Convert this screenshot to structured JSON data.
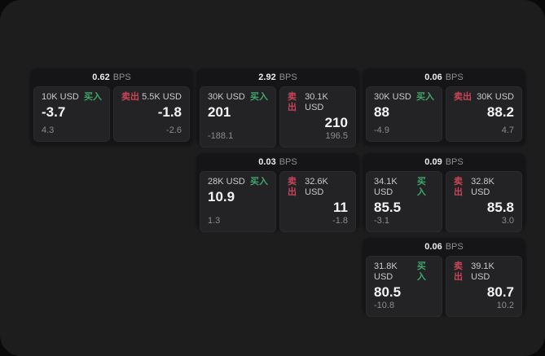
{
  "theme": {
    "canvas": "#1d1d1e",
    "card": "#151517",
    "panel": "#232326",
    "green": "#3fa66a",
    "red": "#c94458"
  },
  "cards": [
    {
      "bps_value": "0.62",
      "bps_unit": "BPS",
      "buy": {
        "amount": "10K USD",
        "tag": "买入",
        "price": "-3.7",
        "delta": "4.3"
      },
      "sell": {
        "tag": "卖出",
        "amount": "5.5K USD",
        "price": "-1.8",
        "delta": "-2.6"
      }
    },
    {
      "bps_value": "2.92",
      "bps_unit": "BPS",
      "buy": {
        "amount": "30K USD",
        "tag": "买入",
        "price": "201",
        "delta": "-188.1"
      },
      "sell": {
        "tag": "卖出",
        "amount": "30.1K USD",
        "price": "210",
        "delta": "196.5"
      }
    },
    {
      "bps_value": "0.06",
      "bps_unit": "BPS",
      "buy": {
        "amount": "30K USD",
        "tag": "买入",
        "price": "88",
        "delta": "-4.9"
      },
      "sell": {
        "tag": "卖出",
        "amount": "30K USD",
        "price": "88.2",
        "delta": "4.7"
      }
    },
    {
      "bps_value": "0.03",
      "bps_unit": "BPS",
      "buy": {
        "amount": "28K USD",
        "tag": "买入",
        "price": "10.9",
        "delta": "1.3"
      },
      "sell": {
        "tag": "卖出",
        "amount": "32.6K USD",
        "price": "11",
        "delta": "-1.8"
      }
    },
    {
      "bps_value": "0.09",
      "bps_unit": "BPS",
      "buy": {
        "amount": "34.1K USD",
        "tag": "买入",
        "price": "85.5",
        "delta": "-3.1"
      },
      "sell": {
        "tag": "卖出",
        "amount": "32.8K USD",
        "price": "85.8",
        "delta": "3.0"
      }
    },
    {
      "bps_value": "0.06",
      "bps_unit": "BPS",
      "buy": {
        "amount": "31.8K USD",
        "tag": "买入",
        "price": "80.5",
        "delta": "-10.8"
      },
      "sell": {
        "tag": "卖出",
        "amount": "39.1K USD",
        "price": "80.7",
        "delta": "10.2"
      }
    }
  ]
}
